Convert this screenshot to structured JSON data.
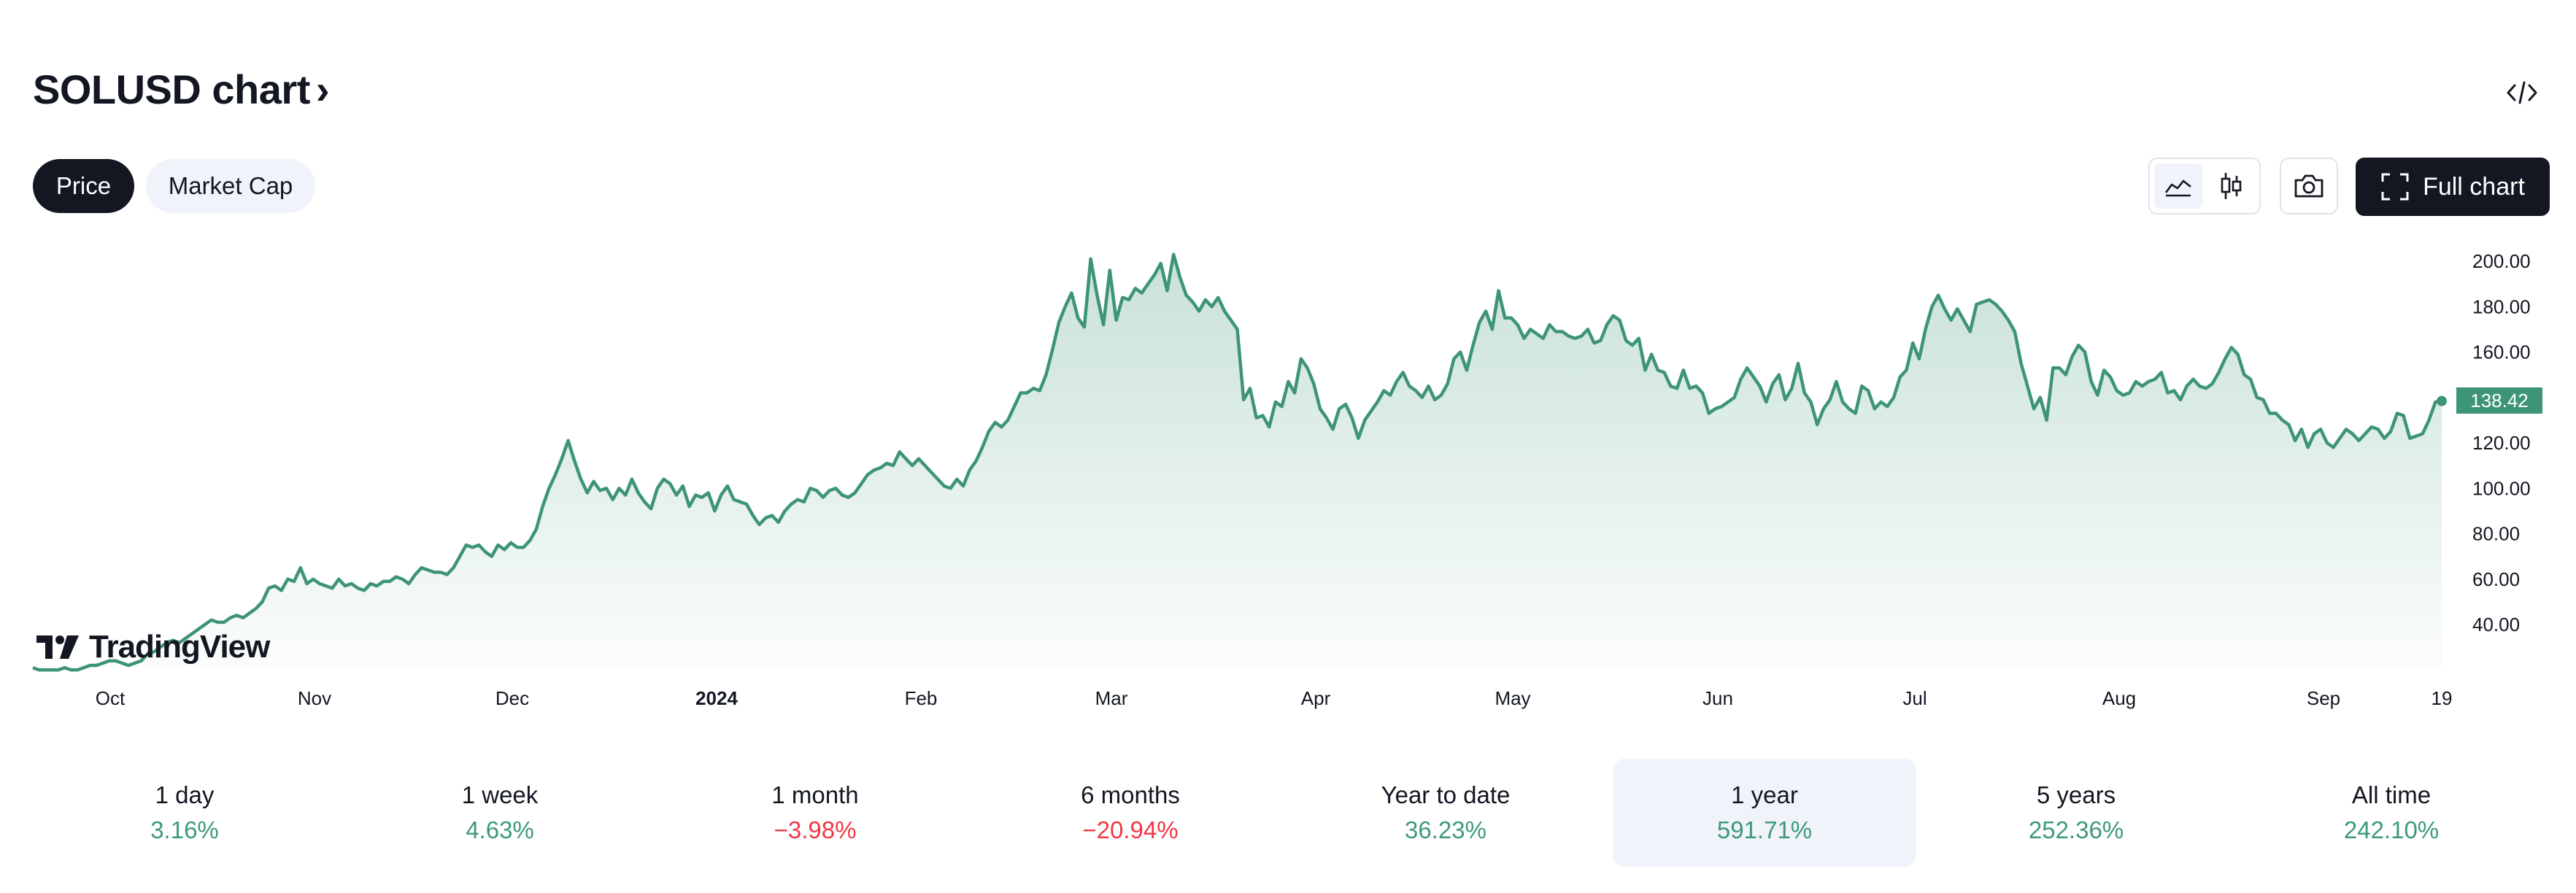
{
  "header": {
    "title": "SOLUSD chart",
    "title_chevron": "›",
    "embed_icon": "code-icon"
  },
  "toggle": {
    "price_label": "Price",
    "market_cap_label": "Market Cap"
  },
  "toolbar": {
    "area_icon": "area-chart-icon",
    "candle_icon": "candlestick-icon",
    "snapshot_icon": "camera-icon",
    "full_chart_label": "Full chart",
    "full_chart_icon": "fullscreen-icon"
  },
  "colors": {
    "line": "#3d9476",
    "accent_dark": "#131722",
    "positive": "#3d9a76",
    "negative": "#f23645"
  },
  "watermark": "TradingView",
  "last_price_label": "138.42",
  "chart_data": {
    "type": "area",
    "ylim": [
      20,
      205
    ],
    "y_ticks": [
      "200.00",
      "180.00",
      "160.00",
      "140.00",
      "120.00",
      "100.00",
      "80.00",
      "60.00",
      "40.00"
    ],
    "x_ticks": [
      "Oct",
      "Nov",
      "Dec",
      "2024",
      "Feb",
      "Mar",
      "Apr",
      "May",
      "Jun",
      "Jul",
      "Aug",
      "Sep",
      "19"
    ],
    "last_value": 138.42,
    "series": [
      {
        "values": [
          21,
          20,
          20,
          20,
          20,
          21,
          20,
          20,
          21,
          22,
          22,
          23,
          24,
          24,
          23,
          22,
          23,
          24,
          27,
          28,
          30,
          32,
          33,
          32,
          34,
          36,
          38,
          40,
          42,
          41,
          41,
          43,
          44,
          43,
          45,
          47,
          50,
          56,
          57,
          55,
          60,
          59,
          65,
          58,
          60,
          58,
          57,
          56,
          60,
          57,
          58,
          56,
          55,
          58,
          57,
          59,
          59,
          61,
          60,
          58,
          62,
          65,
          64,
          63,
          63,
          62,
          65,
          70,
          75,
          74,
          75,
          72,
          70,
          75,
          73,
          76,
          74,
          74,
          77,
          82,
          92,
          100,
          106,
          113,
          121,
          112,
          104,
          98,
          103,
          99,
          100,
          95,
          100,
          97,
          104,
          98,
          94,
          91,
          100,
          104,
          102,
          97,
          101,
          92,
          97,
          96,
          98,
          90,
          97,
          101,
          95,
          94,
          93,
          88,
          84,
          87,
          88,
          85,
          90,
          93,
          95,
          94,
          100,
          99,
          96,
          99,
          100,
          97,
          96,
          98,
          102,
          106,
          108,
          109,
          111,
          110,
          116,
          113,
          110,
          113,
          110,
          107,
          104,
          101,
          100,
          104,
          101,
          108,
          112,
          118,
          125,
          129,
          127,
          130,
          136,
          142,
          142,
          144,
          143,
          150,
          161,
          173,
          180,
          186,
          175,
          171,
          201,
          185,
          172,
          196,
          174,
          184,
          183,
          188,
          186,
          190,
          194,
          199,
          187,
          203,
          193,
          185,
          182,
          178,
          183,
          180,
          184,
          178,
          174,
          170,
          139,
          144,
          131,
          132,
          127,
          138,
          136,
          147,
          142,
          157,
          153,
          146,
          135,
          131,
          126,
          135,
          137,
          131,
          122,
          130,
          134,
          138,
          143,
          141,
          147,
          151,
          145,
          143,
          140,
          145,
          139,
          141,
          146,
          157,
          160,
          152,
          163,
          173,
          178,
          170,
          187,
          175,
          175,
          172,
          166,
          170,
          168,
          166,
          172,
          169,
          169,
          167,
          166,
          167,
          170,
          164,
          165,
          172,
          176,
          174,
          165,
          163,
          166,
          152,
          159,
          152,
          151,
          145,
          144,
          152,
          144,
          145,
          142,
          133,
          135,
          136,
          138,
          140,
          148,
          153,
          149,
          145,
          138,
          146,
          150,
          139,
          144,
          155,
          142,
          138,
          128,
          135,
          139,
          147,
          138,
          135,
          133,
          145,
          143,
          135,
          138,
          136,
          140,
          149,
          152,
          164,
          157,
          170,
          180,
          185,
          179,
          174,
          179,
          174,
          169,
          181,
          182,
          183,
          181,
          178,
          174,
          169,
          155,
          145,
          135,
          140,
          130,
          153,
          153,
          150,
          158,
          163,
          160,
          147,
          141,
          152,
          149,
          143,
          141,
          142,
          147,
          145,
          147,
          148,
          151,
          142,
          143,
          139,
          145,
          148,
          145,
          144,
          146,
          151,
          157,
          162,
          159,
          150,
          148,
          140,
          139,
          133,
          133,
          130,
          128,
          121,
          126,
          118,
          124,
          126,
          120,
          118,
          122,
          126,
          124,
          121,
          124,
          127,
          126,
          122,
          125,
          133,
          132,
          122,
          123,
          124,
          130,
          138,
          138.42
        ]
      }
    ]
  },
  "performance": [
    {
      "label": "1 day",
      "value": "3.16%",
      "sign": "pos"
    },
    {
      "label": "1 week",
      "value": "4.63%",
      "sign": "pos"
    },
    {
      "label": "1 month",
      "value": "−3.98%",
      "sign": "neg"
    },
    {
      "label": "6 months",
      "value": "−20.94%",
      "sign": "neg"
    },
    {
      "label": "Year to date",
      "value": "36.23%",
      "sign": "pos"
    },
    {
      "label": "1 year",
      "value": "591.71%",
      "sign": "pos"
    },
    {
      "label": "5 years",
      "value": "252.36%",
      "sign": "pos"
    },
    {
      "label": "All time",
      "value": "242.10%",
      "sign": "pos"
    }
  ]
}
